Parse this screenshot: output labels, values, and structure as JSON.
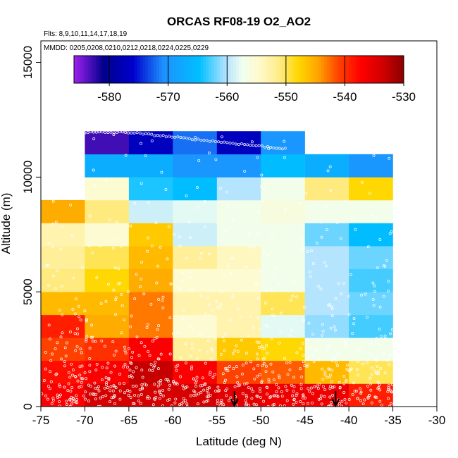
{
  "chart_data": {
    "type": "heatmap",
    "title": "ORCAS RF08-19 O2_AO2",
    "flights_note": "Flts: 8,9,10,11,14,17,18,19",
    "dates_note": "MMDD: 0205,0208,0210,0212,0218,0224,0225,0229",
    "xlabel": "Latitude (deg N)",
    "ylabel": "Altitude (m)",
    "xlim": [
      -75,
      -30
    ],
    "ylim": [
      0,
      15000
    ],
    "x_ticks": [
      -75,
      -70,
      -65,
      -60,
      -55,
      -50,
      -45,
      -40,
      -35,
      -30
    ],
    "y_ticks": [
      0,
      5000,
      10000,
      15000
    ],
    "colorbar": {
      "range": [
        -586,
        -530
      ],
      "ticks": [
        -580,
        -570,
        -560,
        -550,
        -540,
        -530
      ]
    },
    "lat_bin_edges": [
      -75,
      -70,
      -65,
      -60,
      -55,
      -50,
      -45,
      -40,
      -35
    ],
    "alt_bin_edges": [
      0,
      1000,
      2000,
      3000,
      4000,
      5000,
      6000,
      7000,
      8000,
      9000,
      10000,
      11000,
      12000
    ],
    "cells": [
      [
        -537,
        -534,
        -534,
        -534,
        -535,
        -536,
        -536,
        -539
      ],
      [
        -538,
        -537,
        -533,
        -537,
        -541,
        -542,
        -546,
        -550
      ],
      [
        -541,
        -540,
        -537,
        -552,
        -547,
        -548,
        -557,
        -557
      ],
      [
        -539,
        -545,
        -543,
        -555,
        -553,
        -558,
        -561,
        -563
      ],
      [
        -546,
        -546,
        -543,
        -553,
        -553,
        -550,
        -560,
        -562
      ],
      [
        -551,
        -548,
        -545,
        -555,
        -555,
        -557,
        -560,
        -563
      ],
      [
        -552,
        -550,
        -546,
        -552,
        -554,
        -557,
        -560,
        -562
      ],
      [
        -553,
        -555,
        -547,
        -559,
        -557,
        -557,
        -562,
        -565
      ],
      [
        -545,
        -551,
        -559,
        -558,
        -557,
        -556,
        -557,
        -557
      ],
      [
        null,
        -555,
        -564,
        -565,
        -560,
        -557,
        -551,
        -548
      ],
      [
        null,
        -567,
        -567,
        -570,
        -570,
        -565,
        -567,
        -570
      ],
      [
        null,
        -583,
        -577,
        -572,
        -577,
        -570,
        null,
        null
      ]
    ],
    "arrows_lat": [
      -53,
      -41.5
    ]
  }
}
